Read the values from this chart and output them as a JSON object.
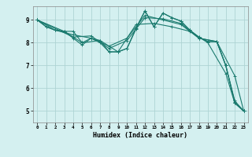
{
  "xlabel": "Humidex (Indice chaleur)",
  "ylabel": "",
  "bg_color": "#d4f0f0",
  "grid_color": "#aed4d4",
  "line_color": "#1a7a6e",
  "xlim": [
    -0.5,
    23.5
  ],
  "ylim": [
    4.5,
    9.6
  ],
  "yticks": [
    5,
    6,
    7,
    8,
    9
  ],
  "xticks": [
    0,
    1,
    2,
    3,
    4,
    5,
    6,
    7,
    8,
    9,
    10,
    11,
    12,
    13,
    14,
    15,
    16,
    17,
    18,
    19,
    20,
    21,
    22,
    23
  ],
  "series": [
    {
      "x": [
        0,
        1,
        2,
        3,
        4,
        5,
        6,
        7,
        8,
        9,
        10,
        11,
        12,
        13,
        14,
        15,
        16,
        17,
        18,
        19,
        20,
        21,
        22,
        23
      ],
      "y": [
        9.0,
        8.7,
        8.55,
        8.5,
        8.5,
        8.0,
        8.2,
        8.1,
        7.6,
        7.6,
        7.75,
        8.6,
        9.4,
        8.7,
        9.3,
        9.1,
        8.95,
        8.55,
        8.25,
        8.05,
        8.05,
        7.0,
        5.4,
        5.0
      ]
    },
    {
      "x": [
        0,
        1,
        2,
        3,
        4,
        5,
        6,
        7,
        8,
        9,
        10,
        11,
        12,
        13,
        14,
        15,
        16,
        17,
        18,
        19,
        20,
        21,
        22,
        23
      ],
      "y": [
        9.0,
        8.7,
        8.55,
        8.5,
        8.2,
        7.9,
        8.2,
        8.0,
        7.6,
        7.6,
        7.75,
        8.65,
        9.4,
        8.7,
        9.3,
        9.1,
        8.95,
        8.55,
        8.25,
        8.05,
        8.05,
        7.0,
        5.35,
        5.0
      ]
    },
    {
      "x": [
        0,
        2,
        4,
        6,
        8,
        10,
        12,
        14,
        16,
        18,
        20,
        22,
        23
      ],
      "y": [
        9.0,
        8.55,
        8.35,
        8.2,
        7.85,
        8.2,
        9.2,
        9.0,
        8.8,
        8.2,
        8.05,
        6.55,
        5.0
      ]
    },
    {
      "x": [
        0,
        3,
        5,
        7,
        9,
        11,
        13,
        15,
        17,
        19,
        21,
        22,
        23
      ],
      "y": [
        9.0,
        8.5,
        8.0,
        8.1,
        7.6,
        8.8,
        8.85,
        8.7,
        8.5,
        8.0,
        6.65,
        5.35,
        5.0
      ]
    },
    {
      "x": [
        0,
        4,
        6,
        8,
        10,
        12,
        14,
        16,
        18,
        20,
        21,
        22,
        23
      ],
      "y": [
        9.0,
        8.25,
        8.3,
        7.75,
        8.1,
        9.1,
        9.05,
        8.85,
        8.2,
        8.05,
        7.0,
        5.45,
        5.0
      ]
    }
  ]
}
